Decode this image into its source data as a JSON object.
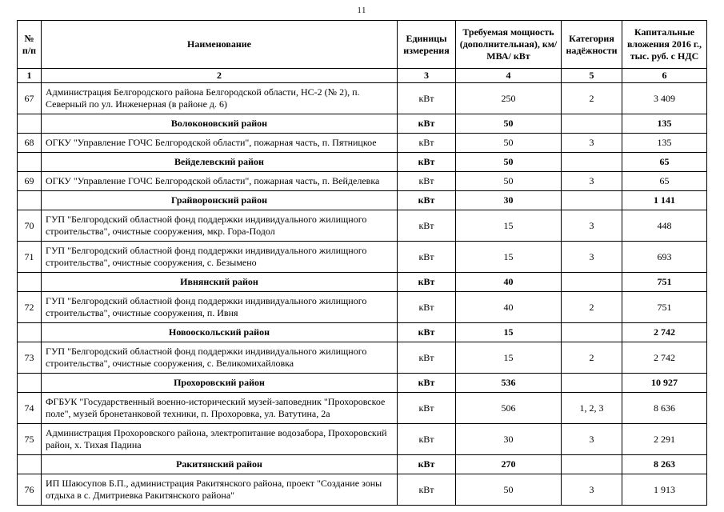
{
  "page": {
    "number": "11"
  },
  "table": {
    "headers": [
      "№ п/п",
      "Наименование",
      "Единицы измерения",
      "Требуемая мощность (дополнительная), км/ МВА/ кВт",
      "Категория надёжности",
      "Капитальные вложения 2016 г., тыс. руб. с НДС"
    ],
    "column_numbers": [
      "1",
      "2",
      "3",
      "4",
      "5",
      "6"
    ],
    "rows": [
      {
        "type": "item",
        "num": "67",
        "name": "Администрация Белгородского района Белгородской области, НС-2 (№ 2), п. Северный по ул. Инженерная (в районе д. 6)",
        "unit": "кВт",
        "power": "250",
        "category": "2",
        "investment": "3 409"
      },
      {
        "type": "district",
        "num": "",
        "name": "Волоконовский район",
        "unit": "кВт",
        "power": "50",
        "category": "",
        "investment": "135"
      },
      {
        "type": "item",
        "num": "68",
        "name": "ОГКУ \"Управление ГОЧС Белгородской области\", пожарная часть, п. Пятницкое",
        "unit": "кВт",
        "power": "50",
        "category": "3",
        "investment": "135"
      },
      {
        "type": "district",
        "num": "",
        "name": "Вейделевский район",
        "unit": "кВт",
        "power": "50",
        "category": "",
        "investment": "65"
      },
      {
        "type": "item",
        "num": "69",
        "name": "ОГКУ \"Управление ГОЧС Белгородской области\", пожарная часть, п. Вейделевка",
        "unit": "кВт",
        "power": "50",
        "category": "3",
        "investment": "65"
      },
      {
        "type": "district",
        "num": "",
        "name": "Грайворонский район",
        "unit": "кВт",
        "power": "30",
        "category": "",
        "investment": "1 141"
      },
      {
        "type": "item",
        "num": "70",
        "name": "ГУП \"Белгородский областной фонд поддержки индивидуального жилищного строительства\", очистные сооружения, мкр. Гора-Подол",
        "unit": "кВт",
        "power": "15",
        "category": "3",
        "investment": "448"
      },
      {
        "type": "item",
        "num": "71",
        "name": "ГУП \"Белгородский областной фонд поддержки индивидуального жилищного строительства\", очистные сооружения, с. Безымено",
        "unit": "кВт",
        "power": "15",
        "category": "3",
        "investment": "693"
      },
      {
        "type": "district",
        "num": "",
        "name": "Ивнянский район",
        "unit": "кВт",
        "power": "40",
        "category": "",
        "investment": "751"
      },
      {
        "type": "item",
        "num": "72",
        "name": "ГУП \"Белгородский областной фонд поддержки индивидуального жилищного строительства\", очистные сооружения, п. Ивня",
        "unit": "кВт",
        "power": "40",
        "category": "2",
        "investment": "751"
      },
      {
        "type": "district",
        "num": "",
        "name": "Новооскольский район",
        "unit": "кВт",
        "power": "15",
        "category": "",
        "investment": "2 742"
      },
      {
        "type": "item",
        "num": "73",
        "name": "ГУП \"Белгородский областной фонд поддержки индивидуального жилищного строительства\", очистные сооружения, с. Великомихайловка",
        "unit": "кВт",
        "power": "15",
        "category": "2",
        "investment": "2 742"
      },
      {
        "type": "district",
        "num": "",
        "name": "Прохоровский район",
        "unit": "кВт",
        "power": "536",
        "category": "",
        "investment": "10 927"
      },
      {
        "type": "item",
        "num": "74",
        "name": "ФГБУК \"Государственный военно-исторический музей-заповедник \"Прохоровское поле\", музей бронетанковой техники, п. Прохоровка, ул. Ватутина, 2а",
        "unit": "кВт",
        "power": "506",
        "category": "1, 2, 3",
        "investment": "8 636"
      },
      {
        "type": "item",
        "num": "75",
        "name": "Администрация Прохоровского района, электропитание водозабора, Прохоровский район, х. Тихая Падина",
        "unit": "кВт",
        "power": "30",
        "category": "3",
        "investment": "2 291"
      },
      {
        "type": "district",
        "num": "",
        "name": "Ракитянский район",
        "unit": "кВт",
        "power": "270",
        "category": "",
        "investment": "8 263"
      },
      {
        "type": "item",
        "num": "76",
        "name": "ИП Шаюсупов Б.П., администрация Ракитянского района, проект \"Создание зоны отдыха в с. Дмитриевка Ракитянского района\"",
        "unit": "кВт",
        "power": "50",
        "category": "3",
        "investment": "1 913"
      }
    ]
  }
}
